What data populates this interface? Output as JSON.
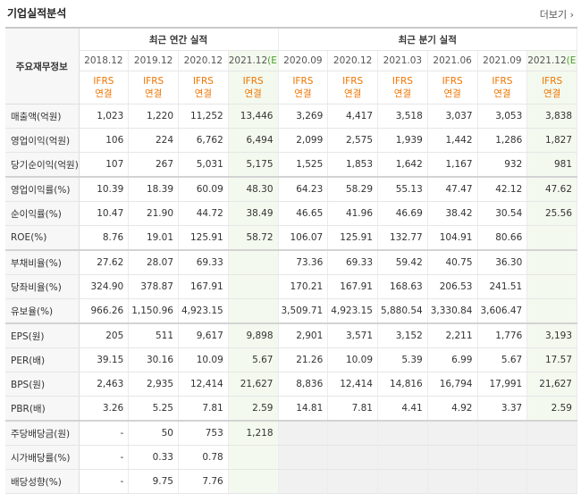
{
  "header": {
    "title": "기업실적분석",
    "more": "더보기 ›"
  },
  "table": {
    "row_header": "주요재무정보",
    "column_groups": [
      {
        "title": "최근 연간 실적",
        "columns": [
          {
            "period": "2018.12",
            "basis": "IFRS",
            "scope": "연결"
          },
          {
            "period": "2019.12",
            "basis": "IFRS",
            "scope": "연결"
          },
          {
            "period": "2020.12",
            "basis": "IFRS",
            "scope": "연결"
          },
          {
            "period": "2021.12",
            "estimate": "(E)",
            "basis": "IFRS",
            "scope": "연결"
          }
        ]
      },
      {
        "title": "최근 분기 실적",
        "columns": [
          {
            "period": "2020.09",
            "basis": "IFRS",
            "scope": "연결"
          },
          {
            "period": "2020.12",
            "basis": "IFRS",
            "scope": "연결"
          },
          {
            "period": "2021.03",
            "basis": "IFRS",
            "scope": "연결"
          },
          {
            "period": "2021.06",
            "basis": "IFRS",
            "scope": "연결"
          },
          {
            "period": "2021.09",
            "basis": "IFRS",
            "scope": "연결"
          },
          {
            "period": "2021.12",
            "estimate": "(E)",
            "basis": "IFRS",
            "scope": "연결"
          }
        ]
      }
    ],
    "sections": [
      {
        "rows": [
          {
            "label": "매출액(억원)",
            "values": [
              "1,023",
              "1,220",
              "11,252",
              "13,446",
              "3,269",
              "4,417",
              "3,518",
              "3,037",
              "3,053",
              "3,838"
            ]
          },
          {
            "label": "영업이익(억원)",
            "values": [
              "106",
              "224",
              "6,762",
              "6,494",
              "2,099",
              "2,575",
              "1,939",
              "1,442",
              "1,286",
              "1,827"
            ]
          },
          {
            "label": "당기순이익(억원)",
            "values": [
              "107",
              "267",
              "5,031",
              "5,175",
              "1,525",
              "1,853",
              "1,642",
              "1,167",
              "932",
              "981"
            ]
          }
        ]
      },
      {
        "rows": [
          {
            "label": "영업이익률(%)",
            "values": [
              "10.39",
              "18.39",
              "60.09",
              "48.30",
              "64.23",
              "58.29",
              "55.13",
              "47.47",
              "42.12",
              "47.62"
            ]
          },
          {
            "label": "순이익률(%)",
            "values": [
              "10.47",
              "21.90",
              "44.72",
              "38.49",
              "46.65",
              "41.96",
              "46.69",
              "38.42",
              "30.54",
              "25.56"
            ]
          },
          {
            "label": "ROE(%)",
            "values": [
              "8.76",
              "19.01",
              "125.91",
              "58.72",
              "106.07",
              "125.91",
              "132.77",
              "104.91",
              "80.66",
              null
            ]
          }
        ]
      },
      {
        "rows": [
          {
            "label": "부채비율(%)",
            "values": [
              "27.62",
              "28.07",
              "69.33",
              null,
              "73.36",
              "69.33",
              "59.42",
              "40.75",
              "36.30",
              null
            ]
          },
          {
            "label": "당좌비율(%)",
            "values": [
              "324.90",
              "378.87",
              "167.91",
              null,
              "170.21",
              "167.91",
              "168.63",
              "206.53",
              "241.51",
              null
            ]
          },
          {
            "label": "유보율(%)",
            "values": [
              "966.26",
              "1,150.96",
              "4,923.15",
              null,
              "3,509.71",
              "4,923.15",
              "5,880.54",
              "3,330.84",
              "3,606.47",
              null
            ]
          }
        ]
      },
      {
        "rows": [
          {
            "label": "EPS(원)",
            "values": [
              "205",
              "511",
              "9,617",
              "9,898",
              "2,901",
              "3,571",
              "3,152",
              "2,211",
              "1,776",
              "3,193"
            ]
          },
          {
            "label": "PER(배)",
            "values": [
              "39.15",
              "30.16",
              "10.09",
              "5.67",
              "21.26",
              "10.09",
              "5.39",
              "6.99",
              "5.67",
              "17.57"
            ]
          },
          {
            "label": "BPS(원)",
            "values": [
              "2,463",
              "2,935",
              "12,414",
              "21,627",
              "8,836",
              "12,414",
              "14,816",
              "16,794",
              "17,991",
              "21,627"
            ]
          },
          {
            "label": "PBR(배)",
            "values": [
              "3.26",
              "5.25",
              "7.81",
              "2.59",
              "14.81",
              "7.81",
              "4.41",
              "4.92",
              "3.37",
              "2.59"
            ]
          }
        ]
      },
      {
        "rows": [
          {
            "label": "주당배당금(원)",
            "values": [
              "-",
              "50",
              "753",
              "1,218",
              null,
              null,
              null,
              null,
              null,
              null
            ]
          },
          {
            "label": "시가배당률(%)",
            "values": [
              "-",
              "0.33",
              "0.78",
              null,
              null,
              null,
              null,
              null,
              null,
              null
            ]
          },
          {
            "label": "배당성향(%)",
            "values": [
              "-",
              "9.75",
              "7.76",
              null,
              null,
              null,
              null,
              null,
              null,
              null
            ]
          }
        ]
      }
    ]
  }
}
